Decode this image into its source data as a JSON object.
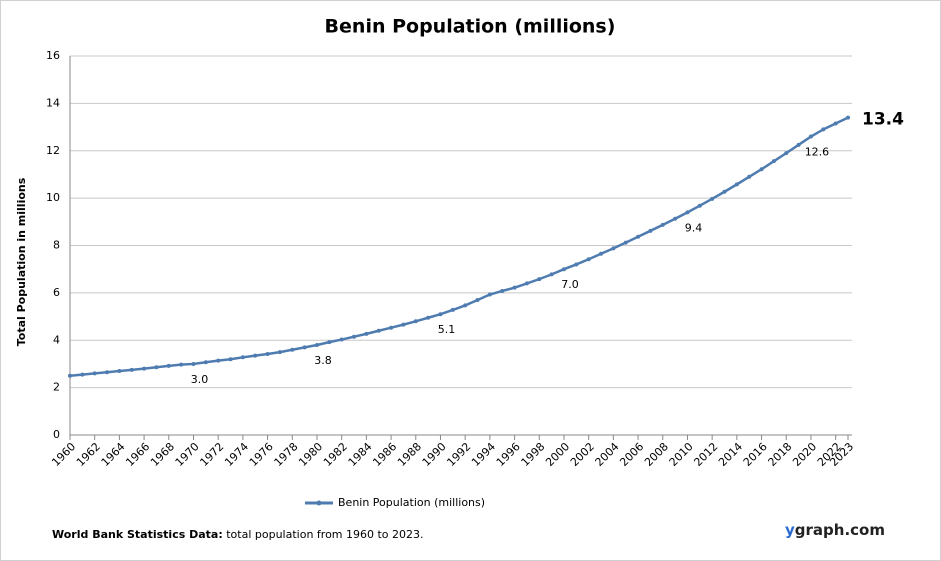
{
  "chart_data": {
    "type": "line",
    "title": "Benin Population (millions)",
    "y_label": "Total Population  in millions",
    "x": [
      1960,
      1961,
      1962,
      1963,
      1964,
      1965,
      1966,
      1967,
      1968,
      1969,
      1970,
      1971,
      1972,
      1973,
      1974,
      1975,
      1976,
      1977,
      1978,
      1979,
      1980,
      1981,
      1982,
      1983,
      1984,
      1985,
      1986,
      1987,
      1988,
      1989,
      1990,
      1991,
      1992,
      1993,
      1994,
      1995,
      1996,
      1997,
      1998,
      1999,
      2000,
      2001,
      2002,
      2003,
      2004,
      2005,
      2006,
      2007,
      2008,
      2009,
      2010,
      2011,
      2012,
      2013,
      2014,
      2015,
      2016,
      2017,
      2018,
      2019,
      2020,
      2021,
      2022,
      2023
    ],
    "series": [
      {
        "name": "Benin Population (millions)",
        "color": "#4f7cb0",
        "values": [
          2.5,
          2.55,
          2.6,
          2.65,
          2.7,
          2.75,
          2.8,
          2.86,
          2.92,
          2.97,
          3.0,
          3.07,
          3.14,
          3.2,
          3.28,
          3.35,
          3.42,
          3.5,
          3.6,
          3.7,
          3.8,
          3.92,
          4.03,
          4.15,
          4.27,
          4.4,
          4.53,
          4.66,
          4.8,
          4.95,
          5.1,
          5.28,
          5.47,
          5.7,
          5.93,
          6.08,
          6.22,
          6.4,
          6.58,
          6.78,
          7.0,
          7.2,
          7.42,
          7.65,
          7.88,
          8.12,
          8.37,
          8.62,
          8.87,
          9.13,
          9.4,
          9.68,
          9.97,
          10.27,
          10.58,
          10.9,
          11.22,
          11.56,
          11.9,
          12.25,
          12.6,
          12.9,
          13.15,
          13.4
        ],
        "value_labels": [
          null,
          null,
          null,
          null,
          null,
          null,
          null,
          null,
          null,
          null,
          "3.0",
          null,
          null,
          null,
          null,
          null,
          null,
          null,
          null,
          null,
          "3.8",
          null,
          null,
          null,
          null,
          null,
          null,
          null,
          null,
          null,
          "5.1",
          null,
          null,
          null,
          null,
          null,
          null,
          null,
          null,
          null,
          "7.0",
          null,
          null,
          null,
          null,
          null,
          null,
          null,
          null,
          null,
          "9.4",
          null,
          null,
          null,
          null,
          null,
          null,
          null,
          null,
          null,
          "12.6",
          null,
          null,
          "13.4"
        ]
      }
    ],
    "xlim": [
      1960,
      2023
    ],
    "xticks": [
      1960,
      1962,
      1964,
      1966,
      1968,
      1970,
      1972,
      1974,
      1976,
      1978,
      1980,
      1982,
      1984,
      1986,
      1988,
      1990,
      1992,
      1994,
      1996,
      1998,
      2000,
      2002,
      2004,
      2006,
      2008,
      2010,
      2012,
      2014,
      2016,
      2018,
      2020,
      2022,
      2023
    ],
    "ylim": [
      0,
      16
    ],
    "yticks": [
      0,
      2,
      4,
      6,
      8,
      10,
      12,
      14,
      16
    ],
    "grid": true,
    "source_label": "World Bank Statistics Data:",
    "source_text": " total population from 1960 to 2023.",
    "brand_prefix": "y",
    "brand_rest": "graph.com"
  }
}
